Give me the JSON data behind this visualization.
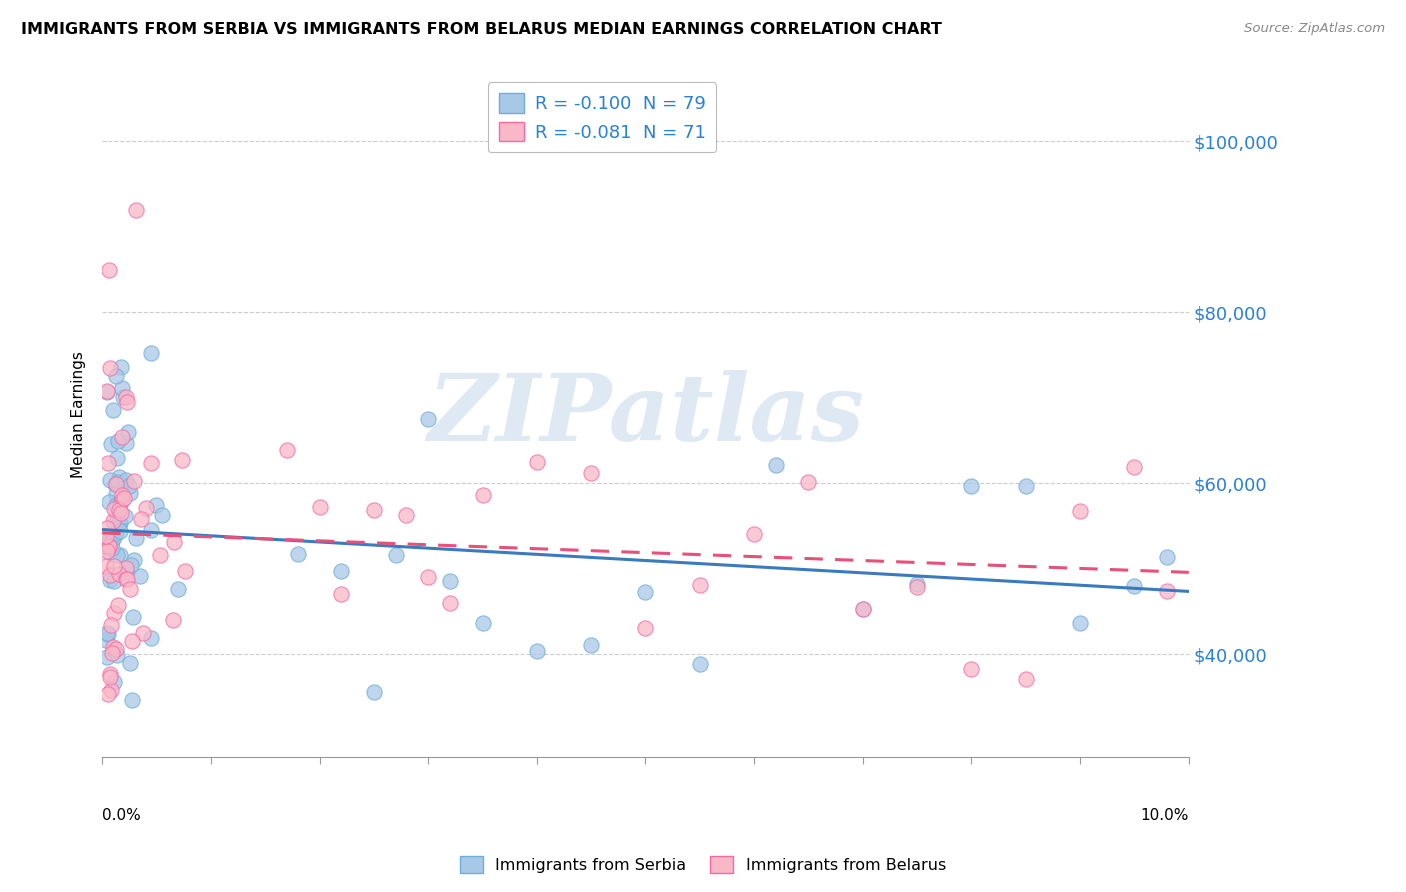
{
  "title": "IMMIGRANTS FROM SERBIA VS IMMIGRANTS FROM BELARUS MEDIAN EARNINGS CORRELATION CHART",
  "source": "Source: ZipAtlas.com",
  "ylabel": "Median Earnings",
  "y_ticks": [
    40000,
    60000,
    80000,
    100000
  ],
  "y_tick_labels": [
    "$40,000",
    "$60,000",
    "$80,000",
    "$100,000"
  ],
  "x_min": 0.0,
  "x_max": 10.0,
  "y_min": 28000,
  "y_max": 108000,
  "serbia_color": "#a8c8e8",
  "serbia_edge_color": "#6baed6",
  "belarus_color": "#f8b8c8",
  "belarus_edge_color": "#f768a1",
  "serbia_line_color": "#3a7abf",
  "belarus_line_color": "#e8507a",
  "serbia_R": -0.1,
  "serbia_N": 79,
  "belarus_R": -0.081,
  "belarus_N": 71,
  "watermark": "ZIPatlas",
  "reg_line_start": 0.0,
  "reg_line_end": 10.0,
  "serbia_intercept": 55500,
  "serbia_slope": -1100,
  "belarus_intercept": 55000,
  "belarus_slope": -700
}
